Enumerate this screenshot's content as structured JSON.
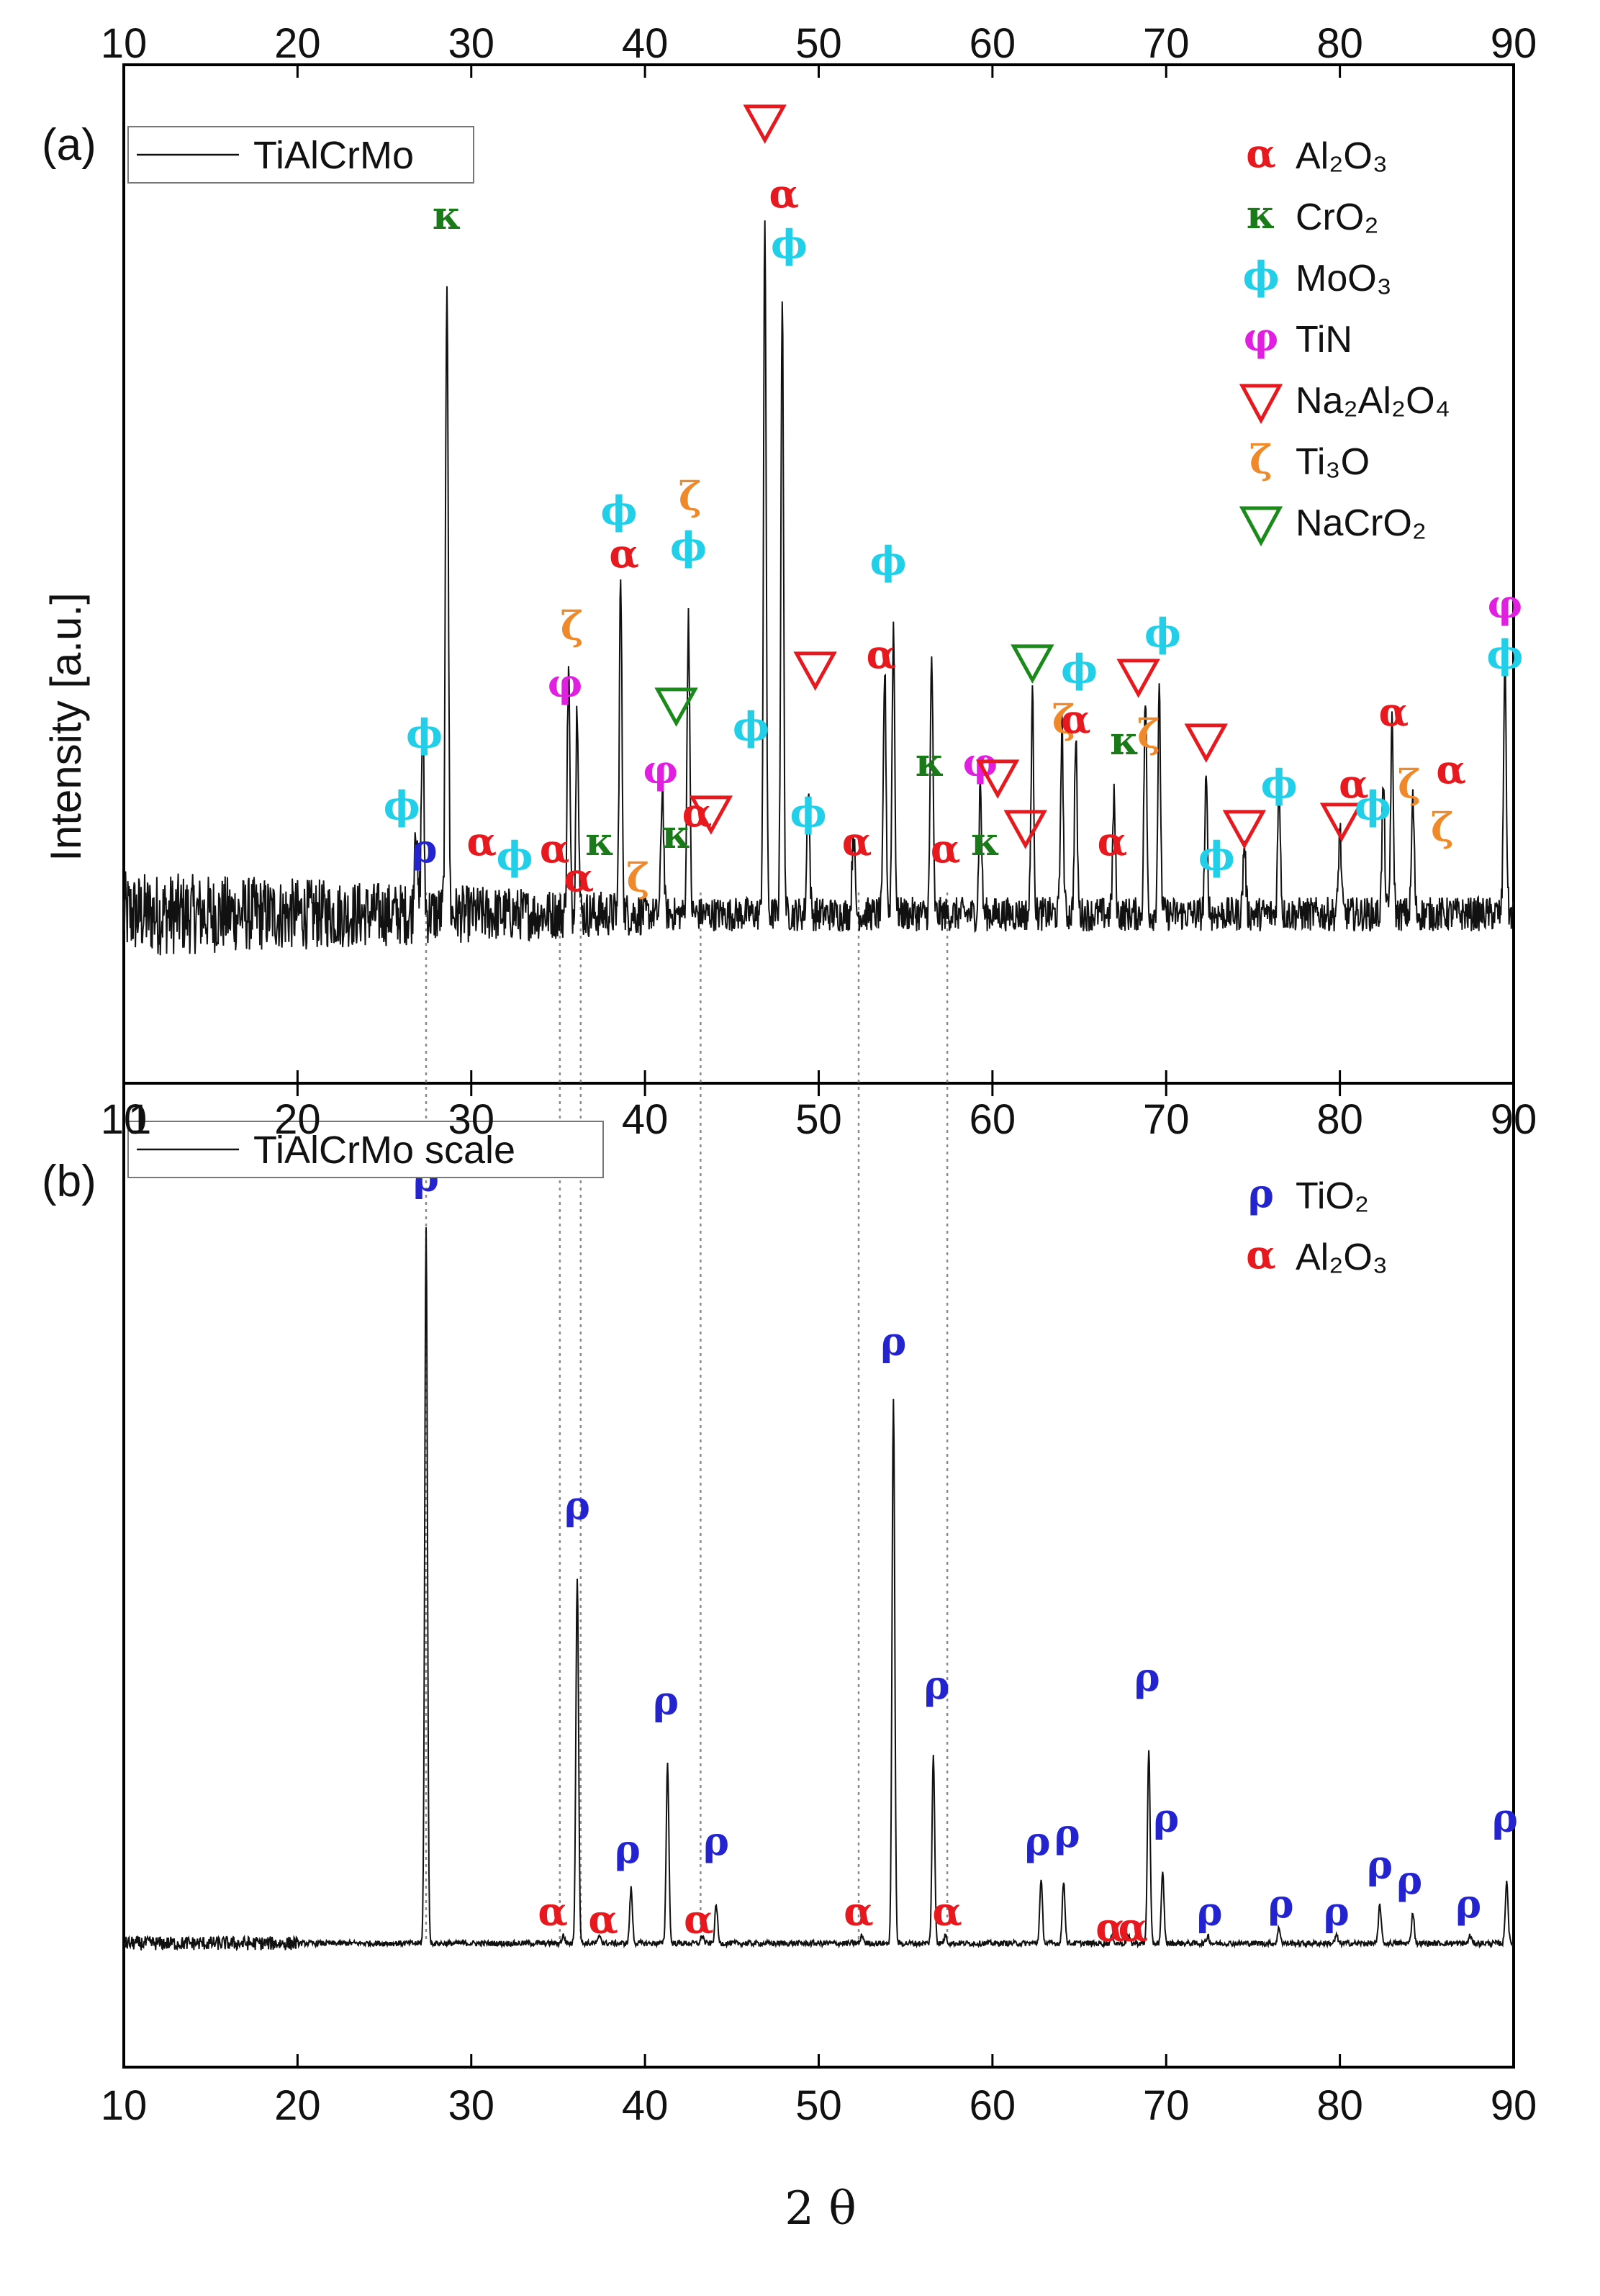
{
  "chart_data": [
    {
      "panel": "(a)",
      "type": "line",
      "series_name": "TiAlCrMo",
      "xlabel": "2 θ",
      "ylabel": "Intensity [a.u.]",
      "xlim": [
        10,
        90
      ],
      "ylim": [
        0,
        100
      ],
      "x_ticks": [
        10,
        20,
        30,
        40,
        50,
        60,
        70,
        80,
        90
      ],
      "baseline_noise": "high at low angle, decreasing",
      "peaks": [
        {
          "x": 26.8,
          "y": 14
        },
        {
          "x": 27.2,
          "y": 26
        },
        {
          "x": 28.6,
          "y": 90
        },
        {
          "x": 35.6,
          "y": 34
        },
        {
          "x": 36.1,
          "y": 30
        },
        {
          "x": 38.6,
          "y": 46
        },
        {
          "x": 41.0,
          "y": 18
        },
        {
          "x": 42.5,
          "y": 42
        },
        {
          "x": 46.9,
          "y": 96
        },
        {
          "x": 47.9,
          "y": 86
        },
        {
          "x": 49.4,
          "y": 18
        },
        {
          "x": 52.0,
          "y": 12
        },
        {
          "x": 53.8,
          "y": 34
        },
        {
          "x": 54.3,
          "y": 40
        },
        {
          "x": 56.5,
          "y": 36
        },
        {
          "x": 59.3,
          "y": 18
        },
        {
          "x": 62.3,
          "y": 30
        },
        {
          "x": 64.0,
          "y": 26
        },
        {
          "x": 64.8,
          "y": 24
        },
        {
          "x": 67.0,
          "y": 16
        },
        {
          "x": 68.8,
          "y": 30
        },
        {
          "x": 69.6,
          "y": 30
        },
        {
          "x": 72.3,
          "y": 18
        },
        {
          "x": 74.5,
          "y": 10
        },
        {
          "x": 76.5,
          "y": 18
        },
        {
          "x": 80.0,
          "y": 12
        },
        {
          "x": 82.5,
          "y": 18
        },
        {
          "x": 83.0,
          "y": 26
        },
        {
          "x": 84.2,
          "y": 16
        },
        {
          "x": 89.5,
          "y": 36
        }
      ],
      "legend": [
        "TiAlCrMo"
      ],
      "key": [
        {
          "symbol": "α",
          "label": "Al₂O₃",
          "color": "#e8191e"
        },
        {
          "symbol": "κ",
          "label": "CrO₂",
          "color": "#1a7a1a"
        },
        {
          "symbol": "ϕ",
          "label": "MoO₃",
          "color": "#21d0e8"
        },
        {
          "symbol": "φ",
          "label": "TiN",
          "color": "#e01fe0"
        },
        {
          "symbol": "▽",
          "label": "Na₂Al₂O₄",
          "color": "#e8191e"
        },
        {
          "symbol": "ζ",
          "label": "Ti₃O",
          "color": "#f0892a"
        },
        {
          "symbol": "▽",
          "label": "NaCrO₂",
          "color": "#1a8a1a"
        }
      ],
      "annotations": [
        {
          "s": "κ",
          "x": 28.6,
          "y": 97,
          "c": "#1a7a1a"
        },
        {
          "s": "▽",
          "x": 46.9,
          "y": 110,
          "c": "#e8191e"
        },
        {
          "s": "α",
          "x": 48.0,
          "y": 100,
          "c": "#e8191e"
        },
        {
          "s": "ϕ",
          "x": 48.3,
          "y": 93,
          "c": "#21d0e8"
        },
        {
          "s": "ϕ",
          "x": 38.5,
          "y": 56,
          "c": "#21d0e8"
        },
        {
          "s": "α",
          "x": 38.8,
          "y": 50,
          "c": "#e8191e"
        },
        {
          "s": "ζ",
          "x": 42.6,
          "y": 58,
          "c": "#f0892a"
        },
        {
          "s": "ϕ",
          "x": 42.5,
          "y": 51,
          "c": "#21d0e8"
        },
        {
          "s": "ϕ",
          "x": 54.0,
          "y": 49,
          "c": "#21d0e8"
        },
        {
          "s": "α",
          "x": 53.6,
          "y": 36,
          "c": "#e8191e"
        },
        {
          "s": "▽",
          "x": 49.8,
          "y": 34,
          "c": "#e8191e"
        },
        {
          "s": "ϕ",
          "x": 26.0,
          "y": 15,
          "c": "#21d0e8"
        },
        {
          "s": "ϕ",
          "x": 27.3,
          "y": 25,
          "c": "#21d0e8"
        },
        {
          "s": "ρ",
          "x": 27.3,
          "y": 9,
          "c": "#2323d0"
        },
        {
          "s": "α",
          "x": 30.6,
          "y": 10,
          "c": "#e8191e"
        },
        {
          "s": "ϕ",
          "x": 32.5,
          "y": 8,
          "c": "#21d0e8"
        },
        {
          "s": "α",
          "x": 34.8,
          "y": 9,
          "c": "#e8191e"
        },
        {
          "s": "ζ",
          "x": 35.8,
          "y": 40,
          "c": "#f0892a"
        },
        {
          "s": "φ",
          "x": 35.4,
          "y": 32,
          "c": "#e01fe0"
        },
        {
          "s": "κ",
          "x": 37.4,
          "y": 10,
          "c": "#1a7a1a"
        },
        {
          "s": "α",
          "x": 36.2,
          "y": 5,
          "c": "#e8191e"
        },
        {
          "s": "ζ",
          "x": 39.6,
          "y": 5,
          "c": "#f0892a"
        },
        {
          "s": "▽",
          "x": 41.8,
          "y": 29,
          "c": "#1a8a1a"
        },
        {
          "s": "φ",
          "x": 40.9,
          "y": 20,
          "c": "#e01fe0"
        },
        {
          "s": "κ",
          "x": 41.8,
          "y": 11,
          "c": "#1a7a1a"
        },
        {
          "s": "α",
          "x": 43.0,
          "y": 14,
          "c": "#e8191e"
        },
        {
          "s": "▽",
          "x": 43.8,
          "y": 14,
          "c": "#e8191e"
        },
        {
          "s": "ϕ",
          "x": 46.1,
          "y": 26,
          "c": "#21d0e8"
        },
        {
          "s": "ϕ",
          "x": 49.4,
          "y": 14,
          "c": "#21d0e8"
        },
        {
          "s": "α",
          "x": 52.2,
          "y": 10,
          "c": "#e8191e"
        },
        {
          "s": "κ",
          "x": 56.4,
          "y": 21,
          "c": "#1a7a1a"
        },
        {
          "s": "α",
          "x": 57.3,
          "y": 9,
          "c": "#e8191e"
        },
        {
          "s": "φ",
          "x": 59.3,
          "y": 21,
          "c": "#e01fe0"
        },
        {
          "s": "▽",
          "x": 60.3,
          "y": 19,
          "c": "#e8191e"
        },
        {
          "s": "κ",
          "x": 59.6,
          "y": 10,
          "c": "#1a7a1a"
        },
        {
          "s": "▽",
          "x": 61.9,
          "y": 12,
          "c": "#e8191e"
        },
        {
          "s": "▽",
          "x": 62.3,
          "y": 35,
          "c": "#1a8a1a"
        },
        {
          "s": "ζ",
          "x": 64.1,
          "y": 27,
          "c": "#f0892a"
        },
        {
          "s": "α",
          "x": 64.8,
          "y": 27,
          "c": "#e8191e"
        },
        {
          "s": "ϕ",
          "x": 65.0,
          "y": 34,
          "c": "#21d0e8"
        },
        {
          "s": "α",
          "x": 66.9,
          "y": 10,
          "c": "#e8191e"
        },
        {
          "s": "κ",
          "x": 67.6,
          "y": 24,
          "c": "#1a7a1a"
        },
        {
          "s": "▽",
          "x": 68.4,
          "y": 33,
          "c": "#e8191e"
        },
        {
          "s": "ζ",
          "x": 69.0,
          "y": 25,
          "c": "#f0892a"
        },
        {
          "s": "ϕ",
          "x": 69.8,
          "y": 39,
          "c": "#21d0e8"
        },
        {
          "s": "▽",
          "x": 72.3,
          "y": 24,
          "c": "#e8191e"
        },
        {
          "s": "ϕ",
          "x": 72.9,
          "y": 8,
          "c": "#21d0e8"
        },
        {
          "s": "▽",
          "x": 74.5,
          "y": 12,
          "c": "#e8191e"
        },
        {
          "s": "ϕ",
          "x": 76.5,
          "y": 18,
          "c": "#21d0e8"
        },
        {
          "s": "▽",
          "x": 80.1,
          "y": 13,
          "c": "#e8191e"
        },
        {
          "s": "α",
          "x": 80.8,
          "y": 18,
          "c": "#e8191e"
        },
        {
          "s": "ϕ",
          "x": 81.9,
          "y": 15,
          "c": "#21d0e8"
        },
        {
          "s": "α",
          "x": 83.1,
          "y": 28,
          "c": "#e8191e"
        },
        {
          "s": "ζ",
          "x": 84.0,
          "y": 18,
          "c": "#f0892a"
        },
        {
          "s": "ζ",
          "x": 85.9,
          "y": 12,
          "c": "#f0892a"
        },
        {
          "s": "α",
          "x": 86.4,
          "y": 20,
          "c": "#e8191e"
        },
        {
          "s": "φ",
          "x": 89.5,
          "y": 43,
          "c": "#e01fe0"
        },
        {
          "s": "ϕ",
          "x": 89.5,
          "y": 36,
          "c": "#21d0e8"
        }
      ]
    },
    {
      "panel": "(b)",
      "type": "line",
      "series_name": "TiAlCrMo scale",
      "xlabel": "2 θ",
      "ylabel": "",
      "xlim": [
        10,
        90
      ],
      "ylim": [
        0,
        100
      ],
      "x_ticks": [
        10,
        20,
        30,
        40,
        50,
        60,
        70,
        80,
        90
      ],
      "peaks": [
        {
          "x": 27.4,
          "y": 92
        },
        {
          "x": 35.3,
          "y": 1
        },
        {
          "x": 36.1,
          "y": 47
        },
        {
          "x": 37.4,
          "y": 1
        },
        {
          "x": 39.2,
          "y": 7
        },
        {
          "x": 41.3,
          "y": 23
        },
        {
          "x": 43.3,
          "y": 1
        },
        {
          "x": 44.1,
          "y": 5
        },
        {
          "x": 52.5,
          "y": 1
        },
        {
          "x": 54.3,
          "y": 70
        },
        {
          "x": 56.6,
          "y": 24
        },
        {
          "x": 57.3,
          "y": 1
        },
        {
          "x": 62.8,
          "y": 8
        },
        {
          "x": 64.1,
          "y": 8
        },
        {
          "x": 66.9,
          "y": 1
        },
        {
          "x": 67.8,
          "y": 1
        },
        {
          "x": 69.0,
          "y": 25
        },
        {
          "x": 69.8,
          "y": 9
        },
        {
          "x": 72.4,
          "y": 1
        },
        {
          "x": 76.5,
          "y": 2
        },
        {
          "x": 79.8,
          "y": 1
        },
        {
          "x": 82.3,
          "y": 5
        },
        {
          "x": 84.2,
          "y": 4
        },
        {
          "x": 87.5,
          "y": 1
        },
        {
          "x": 89.6,
          "y": 8
        }
      ],
      "legend": [
        "TiAlCrMo scale"
      ],
      "key": [
        {
          "symbol": "ρ",
          "label": "TiO₂",
          "color": "#2323d0"
        },
        {
          "symbol": "α",
          "label": "Al₂O₃",
          "color": "#e8191e"
        }
      ],
      "annotations": [
        {
          "s": "ρ",
          "x": 27.4,
          "y": 98,
          "c": "#2323d0"
        },
        {
          "s": "ρ",
          "x": 36.1,
          "y": 56,
          "c": "#2323d0"
        },
        {
          "s": "α",
          "x": 34.7,
          "y": 4,
          "c": "#e8191e"
        },
        {
          "s": "α",
          "x": 37.6,
          "y": 3,
          "c": "#e8191e"
        },
        {
          "s": "ρ",
          "x": 39.0,
          "y": 12,
          "c": "#2323d0"
        },
        {
          "s": "ρ",
          "x": 41.2,
          "y": 31,
          "c": "#2323d0"
        },
        {
          "s": "α",
          "x": 43.1,
          "y": 3,
          "c": "#e8191e"
        },
        {
          "s": "ρ",
          "x": 44.1,
          "y": 13,
          "c": "#2323d0"
        },
        {
          "s": "α",
          "x": 52.3,
          "y": 4,
          "c": "#e8191e"
        },
        {
          "s": "ρ",
          "x": 54.3,
          "y": 77,
          "c": "#2323d0"
        },
        {
          "s": "ρ",
          "x": 56.8,
          "y": 33,
          "c": "#2323d0"
        },
        {
          "s": "α",
          "x": 57.4,
          "y": 4,
          "c": "#e8191e"
        },
        {
          "s": "ρ",
          "x": 62.6,
          "y": 13,
          "c": "#2323d0"
        },
        {
          "s": "ρ",
          "x": 64.3,
          "y": 14,
          "c": "#2323d0"
        },
        {
          "s": "α",
          "x": 66.8,
          "y": 2,
          "c": "#e8191e"
        },
        {
          "s": "α",
          "x": 68.1,
          "y": 2,
          "c": "#e8191e"
        },
        {
          "s": "ρ",
          "x": 68.9,
          "y": 34,
          "c": "#2323d0"
        },
        {
          "s": "ρ",
          "x": 70.0,
          "y": 16,
          "c": "#2323d0"
        },
        {
          "s": "ρ",
          "x": 72.5,
          "y": 4,
          "c": "#2323d0"
        },
        {
          "s": "ρ",
          "x": 76.6,
          "y": 5,
          "c": "#2323d0"
        },
        {
          "s": "ρ",
          "x": 79.8,
          "y": 4,
          "c": "#2323d0"
        },
        {
          "s": "ρ",
          "x": 82.3,
          "y": 10,
          "c": "#2323d0"
        },
        {
          "s": "ρ",
          "x": 84.0,
          "y": 8,
          "c": "#2323d0"
        },
        {
          "s": "ρ",
          "x": 87.4,
          "y": 5,
          "c": "#2323d0"
        },
        {
          "s": "ρ",
          "x": 89.5,
          "y": 16,
          "c": "#2323d0"
        }
      ]
    }
  ],
  "reference_lines_x": [
    27.4,
    35.1,
    36.3,
    43.2,
    52.3,
    57.4
  ],
  "panel_b_top_tick_label_fragment": "1"
}
